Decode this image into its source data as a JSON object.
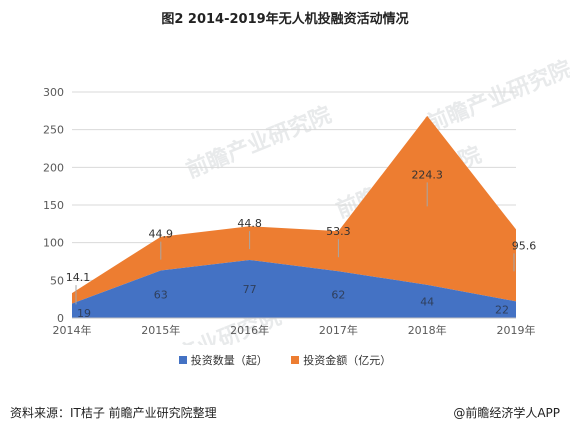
{
  "title": "图2 2014-2019年无人机投融资活动情况",
  "source": "资料来源：IT桔子 前瞻产业研究院整理",
  "brand": "@前瞻经济学人APP",
  "watermark_text": "前瞻产业研究院",
  "colors": {
    "series1": "#4472c4",
    "series2": "#ed7d31",
    "grid": "#d9d9d9",
    "axis": "#bfbfbf"
  },
  "chart_data": {
    "type": "area",
    "stacked": true,
    "categories": [
      "2014年",
      "2015年",
      "2016年",
      "2017年",
      "2018年",
      "2019年"
    ],
    "ylim": [
      0,
      300
    ],
    "yticks": [
      0,
      50,
      100,
      150,
      200,
      250,
      300
    ],
    "grid": true,
    "legend_position": "bottom",
    "series": [
      {
        "name": "投资数量（起）",
        "values": [
          19,
          63,
          77,
          62,
          44,
          22
        ]
      },
      {
        "name": "投资金额（亿元）",
        "values": [
          14.1,
          44.9,
          44.8,
          53.3,
          224.3,
          95.6
        ]
      }
    ]
  }
}
